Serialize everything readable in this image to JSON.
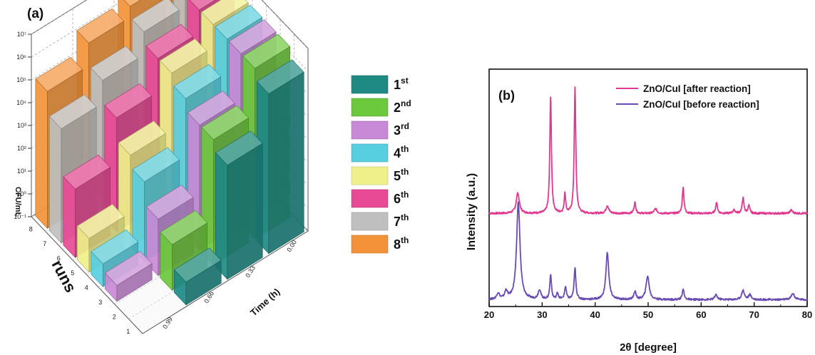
{
  "chart_data": [
    {
      "type": "bar",
      "panel_label": "(a)",
      "xlabel": "runs",
      "ylabel": "Time (h)",
      "zlabel": "CFU/mL",
      "z_scale": "log",
      "zlim": [
        0.1,
        10000000.0
      ],
      "z_ticks": [
        "10⁻¹",
        "10⁰",
        "10¹",
        "10²",
        "10³",
        "10⁴",
        "10⁵",
        "10⁶",
        "10⁷"
      ],
      "run_ticks": [
        "1",
        "2",
        "3",
        "4",
        "5",
        "6",
        "7",
        "8"
      ],
      "time_ticks": [
        "0.99",
        "0.66",
        "0.33",
        "0.00"
      ],
      "legend_placement": "right",
      "series": [
        {
          "name": "1st",
          "base": "1",
          "sup": "st",
          "color": "#1f8a84",
          "times": [
            0.0,
            0.33,
            0.66
          ],
          "values": [
            1000000,
            10000,
            1
          ]
        },
        {
          "name": "2nd",
          "base": "2",
          "sup": "nd",
          "color": "#6cc83c",
          "times": [
            0.0,
            0.33,
            0.66
          ],
          "values": [
            3000000,
            30000,
            10
          ]
        },
        {
          "name": "3rd",
          "base": "3",
          "sup": "rd",
          "color": "#c88ad6",
          "times": [
            0.0,
            0.33,
            0.66,
            0.99
          ],
          "values": [
            3000000,
            30000,
            30,
            0.5
          ]
        },
        {
          "name": "4th",
          "base": "4",
          "sup": "th",
          "color": "#58cfe0",
          "times": [
            0.0,
            0.33,
            0.66,
            0.99
          ],
          "values": [
            3000000,
            100000,
            300,
            1
          ]
        },
        {
          "name": "5th",
          "base": "5",
          "sup": "th",
          "color": "#f0f08a",
          "times": [
            0.0,
            0.33,
            0.66,
            0.99
          ],
          "values": [
            3000000,
            300000,
            1000,
            3
          ]
        },
        {
          "name": "6th",
          "base": "6",
          "sup": "th",
          "color": "#e84a95",
          "times": [
            0.0,
            0.33,
            0.66,
            0.99
          ],
          "values": [
            3000000,
            300000,
            10000,
            100
          ]
        },
        {
          "name": "7th",
          "base": "7",
          "sup": "th",
          "color": "#bfbfbf",
          "times": [
            0.0,
            0.33,
            0.66,
            0.99
          ],
          "values": [
            3000000,
            1000000,
            100000,
            10000
          ]
        },
        {
          "name": "8th",
          "base": "8",
          "sup": "th",
          "color": "#f39238",
          "times": [
            0.0,
            0.33,
            0.66,
            0.99
          ],
          "values": [
            10000000,
            3000000,
            1000000,
            100000
          ]
        }
      ]
    },
    {
      "type": "line",
      "panel_label": "(b)",
      "xlabel": "2θ [degree]",
      "ylabel": "Intensity (a.u.)",
      "xlim": [
        20,
        80
      ],
      "x_ticks": [
        20,
        30,
        40,
        50,
        60,
        70,
        80
      ],
      "legend_placement": "top-right",
      "series": [
        {
          "name": "ZnO/CuI [after reaction]",
          "color": "#e2388f",
          "offset": 0.56,
          "baseline": 0.02,
          "peaks": [
            [
              25.4,
              0.13,
              0.35
            ],
            [
              31.6,
              0.75,
              0.18
            ],
            [
              34.3,
              0.13,
              0.16
            ],
            [
              36.2,
              0.8,
              0.18
            ],
            [
              42.3,
              0.05,
              0.3
            ],
            [
              47.5,
              0.07,
              0.2
            ],
            [
              51.4,
              0.03,
              0.3
            ],
            [
              56.6,
              0.17,
              0.18
            ],
            [
              62.9,
              0.07,
              0.2
            ],
            [
              66.2,
              0.02,
              0.3
            ],
            [
              67.9,
              0.1,
              0.2
            ],
            [
              69.0,
              0.05,
              0.2
            ],
            [
              77.0,
              0.02,
              0.3
            ]
          ]
        },
        {
          "name": "ZnO/CuI [before reaction]",
          "color": "#6a4bb3",
          "offset": 0.0,
          "baseline": 0.03,
          "peaks": [
            [
              21.7,
              0.04,
              0.3
            ],
            [
              23.2,
              0.05,
              0.3
            ],
            [
              25.5,
              0.62,
              0.38
            ],
            [
              29.5,
              0.06,
              0.3
            ],
            [
              31.6,
              0.16,
              0.18
            ],
            [
              32.9,
              0.04,
              0.2
            ],
            [
              34.4,
              0.08,
              0.2
            ],
            [
              36.2,
              0.2,
              0.2
            ],
            [
              42.3,
              0.3,
              0.32
            ],
            [
              47.5,
              0.05,
              0.25
            ],
            [
              49.9,
              0.15,
              0.35
            ],
            [
              56.6,
              0.07,
              0.2
            ],
            [
              62.8,
              0.03,
              0.3
            ],
            [
              67.9,
              0.06,
              0.3
            ],
            [
              69.2,
              0.03,
              0.3
            ],
            [
              77.3,
              0.04,
              0.35
            ]
          ]
        }
      ]
    }
  ]
}
